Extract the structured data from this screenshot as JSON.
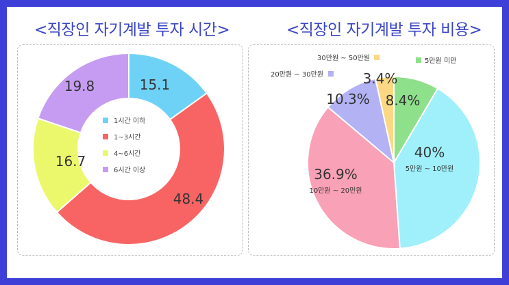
{
  "panels": {
    "left_title": "<직장인 자기계발 투자 시간>",
    "right_title": "<직장인 자기계발 투자 비용>"
  },
  "chart_data": [
    {
      "type": "pie",
      "donut": true,
      "title": "<직장인 자기계발 투자 시간>",
      "unit": "%",
      "legend_position": "center",
      "categories": [
        "1시간 이하",
        "1~3시간",
        "4~6시간",
        "6시간 이상"
      ],
      "values": [
        15.1,
        48.4,
        16.7,
        19.8
      ],
      "labels": [
        "15.1",
        "48.4",
        "16.7",
        "19.8"
      ],
      "colors": [
        "#6ed2f6",
        "#f86464",
        "#ecf86c",
        "#c69cf2"
      ]
    },
    {
      "type": "pie",
      "donut": false,
      "title": "<직장인 자기계발 투자 비용>",
      "unit": "%",
      "categories": [
        "5만원 미만",
        "5만원 ~ 10만원",
        "10만원 ~ 20만원",
        "20만원 ~ 30만원",
        "30만원 ~ 50만원"
      ],
      "values": [
        8.4,
        40,
        36.9,
        10.3,
        3.4
      ],
      "labels": [
        "8.4%",
        "40%",
        "36.9%",
        "10.3%",
        "3.4%"
      ],
      "colors": [
        "#8ee08a",
        "#9ff0fb",
        "#f9a1b6",
        "#b3b2f4",
        "#fcd884"
      ]
    }
  ]
}
